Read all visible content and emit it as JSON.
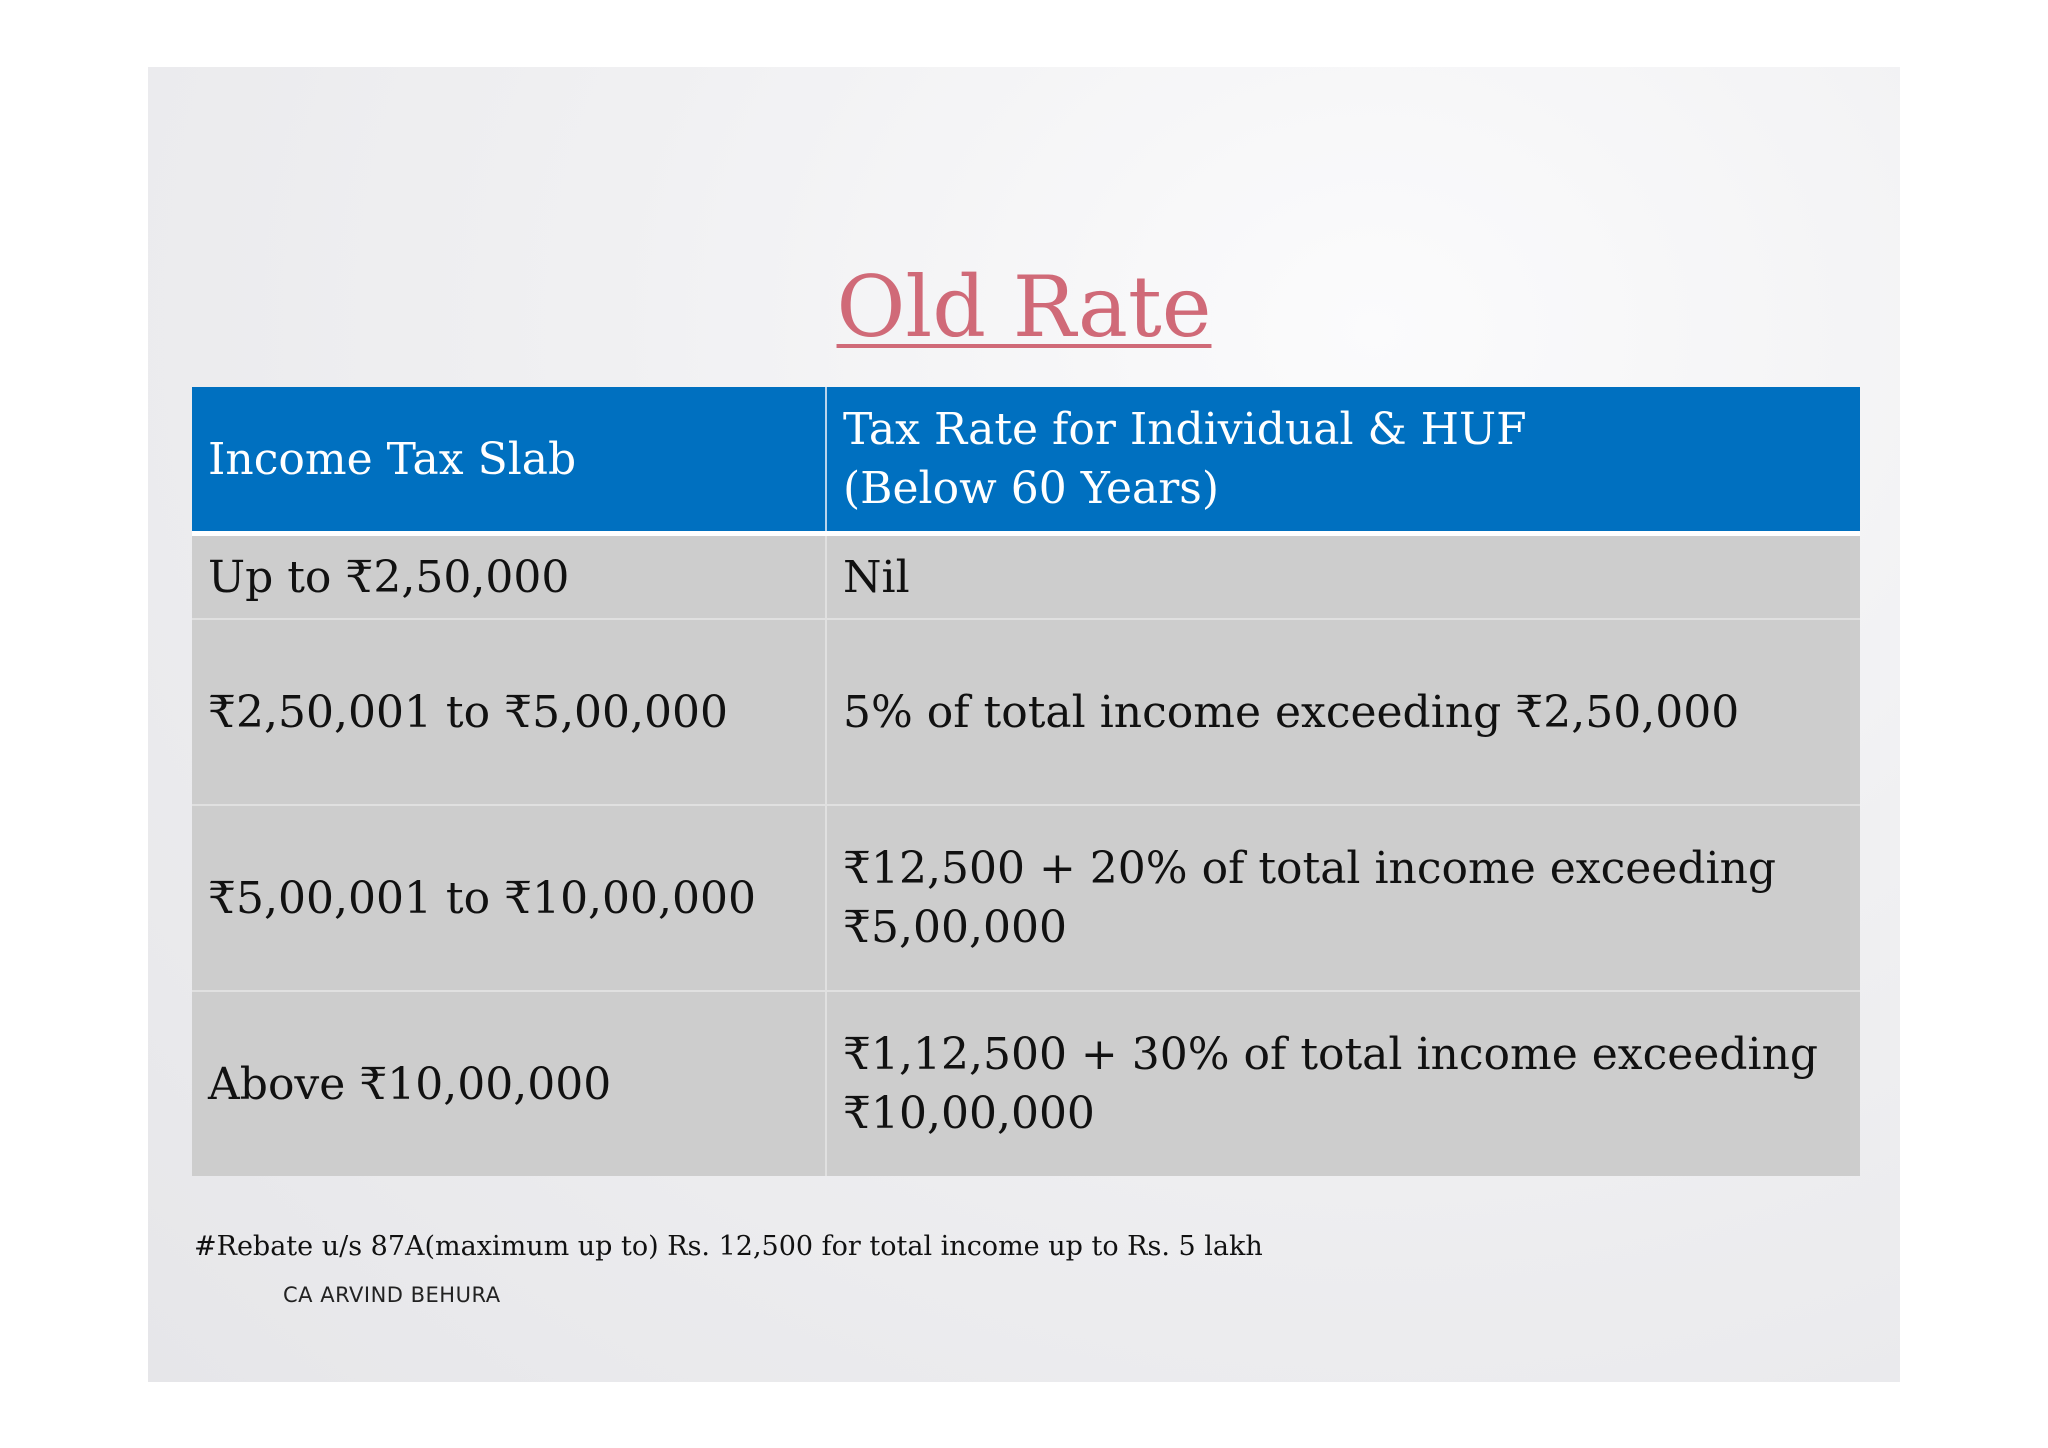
{
  "title": "Old Rate",
  "table": {
    "headers": [
      "Income Tax Slab",
      "Tax Rate for Individual & HUF\n(Below 60 Years)"
    ],
    "header_lines": [
      "Tax Rate for Individual & HUF",
      "(Below 60 Years)"
    ],
    "rows": [
      [
        "Up to ₹2,50,000",
        "Nil"
      ],
      [
        "₹2,50,001 to ₹5,00,000",
        "5% of total income exceeding ₹2,50,000"
      ],
      [
        "₹5,00,001 to ₹10,00,000",
        "₹12,500 + 20% of total income exceeding ₹5,00,000"
      ],
      [
        "Above ₹10,00,000",
        "₹1,12,500 + 30% of total income exceeding ₹10,00,000"
      ]
    ],
    "row3_rate_lines": [
      "₹12,500 + 20% of total income exceeding",
      "₹5,00,000"
    ],
    "row4_rate_lines": [
      "₹1,12,500 + 30% of total income exceeding",
      "₹10,00,000"
    ]
  },
  "footnote": "#Rebate u/s 87A(maximum up to) Rs. 12,500 for total income up to Rs. 5 lakh",
  "author": "CA ARVIND BEHURA",
  "colors": {
    "title": "#d06a78",
    "header_bg": "#0070c0",
    "row_bg": "#cdcdcd"
  }
}
